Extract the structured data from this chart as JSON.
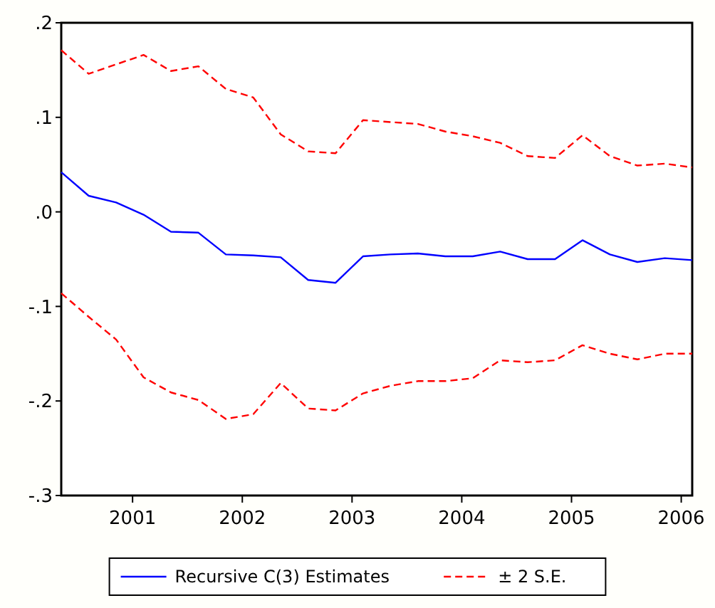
{
  "chart_data": {
    "type": "line",
    "x": [
      2000.75,
      2001,
      2001.25,
      2001.5,
      2001.75,
      2002,
      2002.25,
      2002.5,
      2002.75,
      2003,
      2003.25,
      2003.5,
      2003.75,
      2004,
      2004.25,
      2004.5,
      2004.75,
      2005,
      2005.25,
      2005.5,
      2005.75,
      2006,
      2006.25,
      2006.5
    ],
    "series": [
      {
        "name": "Recursive C(3) Estimates",
        "color": "#0000ff",
        "line_style": "solid",
        "values": [
          0.042,
          0.017,
          0.01,
          -0.003,
          -0.021,
          -0.022,
          -0.045,
          -0.046,
          -0.048,
          -0.072,
          -0.075,
          -0.047,
          -0.045,
          -0.044,
          -0.047,
          -0.047,
          -0.042,
          -0.05,
          -0.05,
          -0.03,
          -0.045,
          -0.053,
          -0.049,
          -0.051
        ]
      },
      {
        "name": "± 2 S.E.",
        "color": "#ff0000",
        "line_style": "dashed",
        "values": [
          0.171,
          0.146,
          0.156,
          0.166,
          0.149,
          0.154,
          0.13,
          0.121,
          0.082,
          0.064,
          0.062,
          0.097,
          0.095,
          0.093,
          0.085,
          0.08,
          0.073,
          0.059,
          0.057,
          0.081,
          0.059,
          0.049,
          0.051,
          0.047
        ]
      },
      {
        "color": "#ff0000",
        "line_style": "dashed",
        "values": [
          -0.086,
          -0.111,
          -0.135,
          -0.175,
          -0.191,
          -0.199,
          -0.219,
          -0.214,
          -0.181,
          -0.208,
          -0.21,
          -0.192,
          -0.184,
          -0.179,
          -0.179,
          -0.176,
          -0.157,
          -0.159,
          -0.157,
          -0.141,
          -0.15,
          -0.156,
          -0.15,
          -0.15
        ]
      }
    ],
    "xlim": [
      2000.75,
      2006.5
    ],
    "xticks": [
      {
        "value": 2001.4,
        "label": "2001"
      },
      {
        "value": 2002.4,
        "label": "2002"
      },
      {
        "value": 2003.4,
        "label": "2003"
      },
      {
        "value": 2004.4,
        "label": "2004"
      },
      {
        "value": 2005.4,
        "label": "2005"
      },
      {
        "value": 2006.4,
        "label": "2006"
      }
    ],
    "ylim": [
      -0.3,
      0.2
    ],
    "yticks": [
      {
        "value": 0.2,
        "label": ".2"
      },
      {
        "value": 0.1,
        "label": ".1"
      },
      {
        "value": 0,
        "label": ".0"
      },
      {
        "value": -0.1,
        "label": "-.1"
      },
      {
        "value": -0.2,
        "label": "-.2"
      },
      {
        "value": -0.3,
        "label": "-.3"
      }
    ],
    "grid": false,
    "legend": "bottom"
  }
}
